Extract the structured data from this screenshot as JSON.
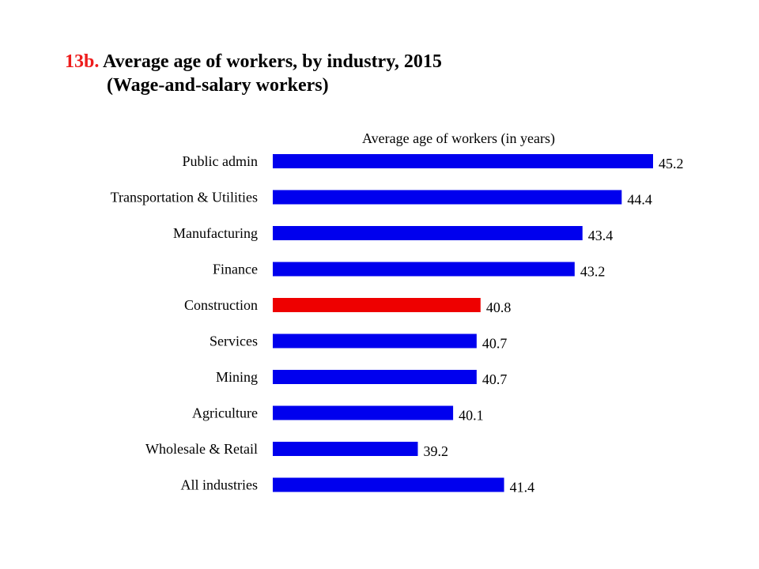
{
  "title": {
    "number": "13b.",
    "main": " Average age of workers, by industry, 2015",
    "subtitle": "(Wage-and-salary workers)"
  },
  "colors": {
    "bar": "#0000ee",
    "highlight": "#ee0000",
    "title_number": "#ee1c1c"
  },
  "chart_data": {
    "type": "bar",
    "orientation": "horizontal",
    "title": "13b. Average age of workers, by industry, 2015 (Wage-and-salary workers)",
    "xlabel": "Average  age of workers (in years)",
    "ylabel": "",
    "categories": [
      "Public admin",
      "Transportation & Utilities",
      "Manufacturing",
      "Finance",
      "Construction",
      "Services",
      "Mining",
      "Agriculture",
      "Wholesale & Retail",
      "All industries"
    ],
    "values": [
      45.2,
      44.4,
      43.4,
      43.2,
      40.8,
      40.7,
      40.7,
      40.1,
      39.2,
      41.4
    ],
    "value_labels": [
      "45.2",
      "44.4",
      "43.4",
      "43.2",
      "40.8",
      "40.7",
      "40.7",
      "40.1",
      "39.2",
      "41.4"
    ],
    "highlight_category": "Construction",
    "xlim": [
      35.5,
      45.2
    ],
    "grid": false,
    "legend": "none"
  }
}
